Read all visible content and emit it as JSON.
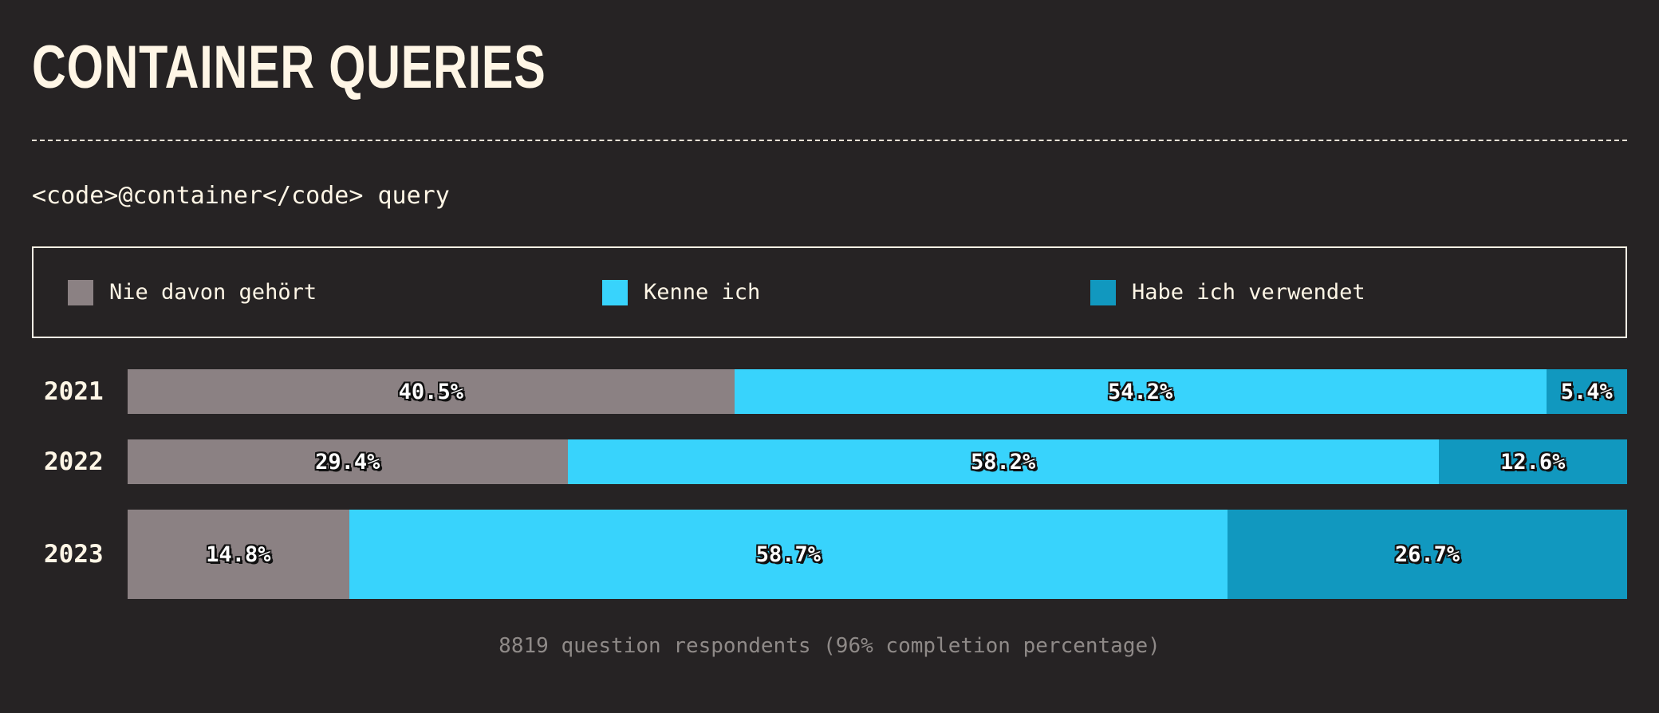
{
  "header": {
    "title": "CONTAINER QUERIES",
    "subtitle": "<code>@container</code> query"
  },
  "legend": {
    "items": [
      {
        "label": "Nie davon gehört",
        "color": "#8b8183"
      },
      {
        "label": "Kenne ich",
        "color": "#38d3fc"
      },
      {
        "label": "Habe ich verwendet",
        "color": "#1198bf"
      }
    ]
  },
  "footer": {
    "text": "8819 question respondents (96% completion percentage)"
  },
  "chart_data": {
    "type": "bar",
    "orientation": "horizontal",
    "stacked": true,
    "normalized": true,
    "categories": [
      "2021",
      "2022",
      "2023"
    ],
    "series": [
      {
        "name": "Nie davon gehört",
        "values": [
          40.5,
          29.4,
          14.8
        ],
        "labels": [
          "40.5%",
          "29.4%",
          "14.8%"
        ],
        "color": "#8b8183"
      },
      {
        "name": "Kenne ich",
        "values": [
          54.2,
          58.2,
          58.7
        ],
        "labels": [
          "54.2%",
          "58.2%",
          "58.7%"
        ],
        "color": "#38d3fc"
      },
      {
        "name": "Habe ich verwendet",
        "values": [
          5.4,
          12.6,
          26.7
        ],
        "labels": [
          "5.4%",
          "12.6%",
          "26.7%"
        ],
        "color": "#1198bf"
      }
    ],
    "xlim": [
      0,
      100
    ],
    "unit": "%",
    "legend_position": "top"
  }
}
